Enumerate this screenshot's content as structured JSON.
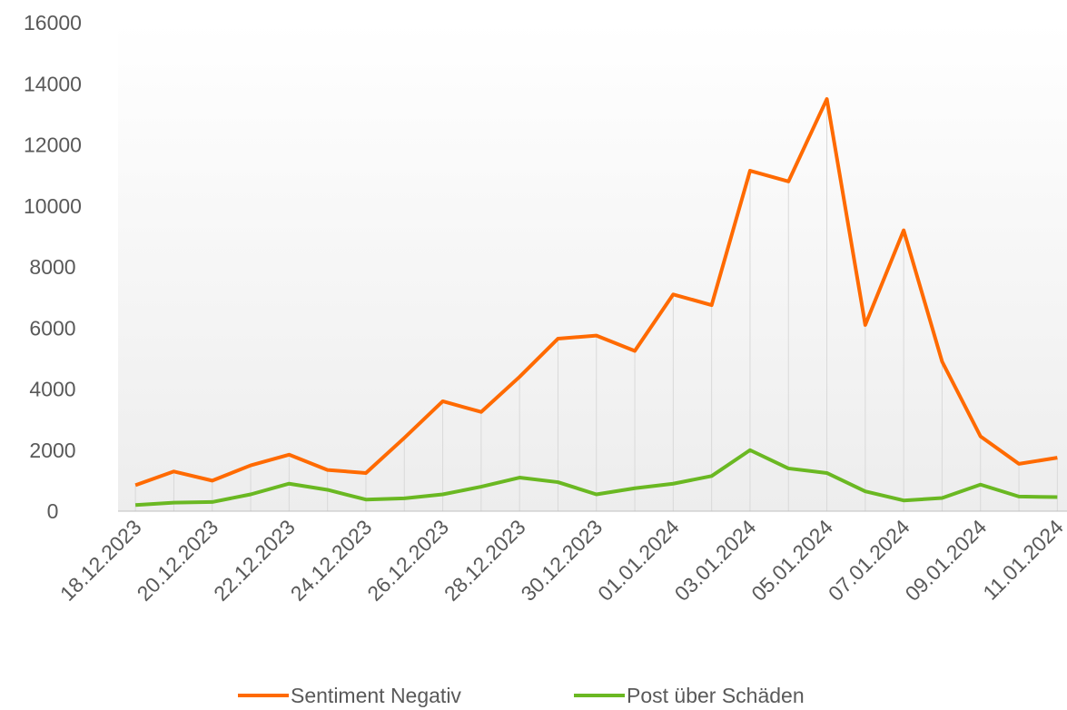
{
  "chart_data": {
    "type": "line",
    "categories": [
      "18.12.2023",
      null,
      "20.12.2023",
      null,
      "22.12.2023",
      null,
      "24.12.2023",
      null,
      "26.12.2023",
      null,
      "28.12.2023",
      null,
      "30.12.2023",
      null,
      "01.01.2024",
      null,
      "03.01.2024",
      null,
      "05.01.2024",
      null,
      "07.01.2024",
      null,
      "09.01.2024",
      null,
      "11.01.2024"
    ],
    "series": [
      {
        "name": "Sentiment Negativ",
        "color": "#ff6a00",
        "values": [
          850,
          1300,
          1000,
          1500,
          1850,
          1350,
          1250,
          2400,
          3600,
          3250,
          4400,
          5650,
          5750,
          5250,
          7100,
          6750,
          11150,
          10800,
          13500,
          6100,
          9200,
          4900,
          2450,
          1550,
          1750
        ]
      },
      {
        "name": "Post über Schäden",
        "color": "#6ab822",
        "values": [
          200,
          280,
          300,
          550,
          900,
          700,
          380,
          420,
          550,
          800,
          1100,
          950,
          550,
          750,
          900,
          1150,
          2000,
          1400,
          1250,
          650,
          350,
          430,
          870,
          480,
          460
        ]
      }
    ],
    "ylim": [
      0,
      16000
    ],
    "yticks": [
      0,
      2000,
      4000,
      6000,
      8000,
      10000,
      12000,
      14000,
      16000
    ],
    "grid": true,
    "legend": "bottom"
  }
}
